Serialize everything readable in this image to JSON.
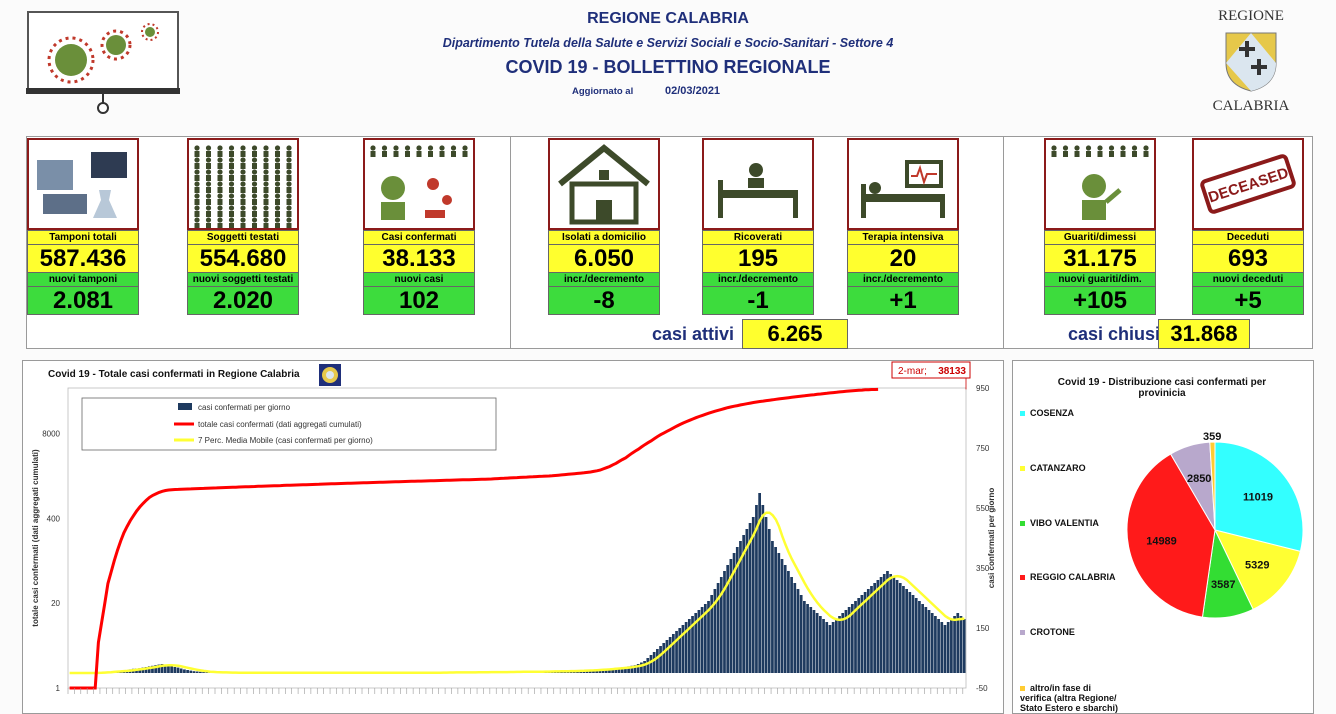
{
  "header": {
    "region": "REGIONE CALABRIA",
    "department": "Dipartimento Tutela della Salute e Servizi Sociali e Socio-Sanitari - Settore 4",
    "bulletin": "COVID 19 - BOLLETTINO REGIONALE",
    "updated_label": "Aggiornato al",
    "updated_date": "02/03/2021",
    "logo_top": "REGIONE",
    "logo_bottom": "CALABRIA"
  },
  "cards": [
    {
      "label": "Tamponi totali",
      "value": "587.436",
      "sub_label": "nuovi tamponi",
      "sub_value": "2.081",
      "icon": "lab-equipment-icon"
    },
    {
      "label": "Soggetti testati",
      "value": "554.680",
      "sub_label": "nuovi soggetti testati",
      "sub_value": "2.020",
      "icon": "people-grid-icon"
    },
    {
      "label": "Casi confermati",
      "value": "38.133",
      "sub_label": "nuovi casi",
      "sub_value": "102",
      "icon": "virus-person-icon"
    },
    {
      "label": "Isolati a domicilio",
      "value": "6.050",
      "sub_label": "incr./decremento",
      "sub_value": "-8",
      "icon": "house-icon"
    },
    {
      "label": "Ricoverati",
      "value": "195",
      "sub_label": "incr./decremento",
      "sub_value": "-1",
      "icon": "hospital-bed-icon"
    },
    {
      "label": "Terapia intensiva",
      "value": "20",
      "sub_label": "incr./decremento",
      "sub_value": "+1",
      "icon": "intensive-care-icon"
    },
    {
      "label": "Guariti/dimessi",
      "value": "31.175",
      "sub_label": "nuovi guariti/dim.",
      "sub_value": "+105",
      "icon": "recovered-person-icon"
    },
    {
      "label": "Deceduti",
      "value": "693",
      "sub_label": "nuovi deceduti",
      "sub_value": "+5",
      "icon": "deceased-stamp-icon"
    }
  ],
  "deceased_stamp": "DECEASED",
  "summary": {
    "active_label": "casi attivi",
    "active_value": "6.265",
    "closed_label": "casi chiusi",
    "closed_value": "31.868"
  },
  "colors": {
    "yellow": "#ffff2e",
    "green": "#3ddc3d",
    "navy": "#1f2f7a",
    "bars": "#1e3a5f",
    "cumulative": "#ff0000",
    "moving_avg": "#ffff33"
  },
  "chart_data": [
    {
      "type": "bar",
      "title": "Covid 19 - Totale casi confermati in Regione Calabria",
      "ylabel_left": "totale casi confermati (dati aggregati cumulati)",
      "ylabel_right": "casi confermati  per giorno",
      "left_axis_ticks": [
        "1",
        "20",
        "400",
        "8000"
      ],
      "left_axis_scale": "log",
      "right_axis_ticks": [
        "-50",
        "150",
        "350",
        "550",
        "750",
        "950"
      ],
      "right_ylim": [
        -50,
        950
      ],
      "annotation": {
        "label": "2-mar;",
        "value": "38133"
      },
      "series": [
        {
          "name": "casi confermati per giorno",
          "kind": "bar",
          "values": [
            0,
            0,
            0,
            0,
            0,
            0,
            0,
            0,
            0,
            2,
            3,
            4,
            5,
            5,
            6,
            7,
            8,
            9,
            10,
            12,
            14,
            15,
            16,
            18,
            20,
            22,
            24,
            26,
            28,
            30,
            26,
            24,
            22,
            20,
            18,
            15,
            12,
            10,
            8,
            6,
            5,
            4,
            3,
            3,
            2,
            2,
            2,
            2,
            1,
            1,
            1,
            1,
            1,
            1,
            1,
            1,
            1,
            1,
            1,
            1,
            1,
            1,
            1,
            1,
            1,
            1,
            1,
            1,
            1,
            1,
            1,
            1,
            1,
            1,
            1,
            1,
            1,
            1,
            1,
            1,
            1,
            1,
            1,
            1,
            1,
            1,
            1,
            1,
            1,
            1,
            1,
            1,
            1,
            1,
            1,
            1,
            1,
            1,
            1,
            1,
            1,
            1,
            1,
            1,
            1,
            1,
            1,
            1,
            1,
            1,
            1,
            1,
            1,
            1,
            1,
            1,
            2,
            2,
            2,
            2,
            2,
            2,
            2,
            2,
            2,
            2,
            2,
            3,
            3,
            3,
            3,
            3,
            3,
            3,
            3,
            3,
            3,
            4,
            4,
            4,
            4,
            4,
            4,
            4,
            4,
            4,
            5,
            5,
            5,
            5,
            5,
            6,
            6,
            6,
            6,
            6,
            7,
            7,
            7,
            8,
            8,
            9,
            9,
            10,
            10,
            11,
            12,
            13,
            14,
            15,
            16,
            17,
            18,
            19,
            20,
            22,
            24,
            26,
            30,
            35,
            40,
            50,
            60,
            70,
            80,
            90,
            100,
            110,
            120,
            130,
            140,
            150,
            160,
            170,
            180,
            190,
            200,
            210,
            220,
            230,
            240,
            260,
            280,
            300,
            320,
            340,
            360,
            380,
            400,
            420,
            440,
            460,
            480,
            500,
            520,
            560,
            600,
            560,
            520,
            480,
            440,
            420,
            400,
            380,
            360,
            340,
            320,
            300,
            280,
            260,
            240,
            230,
            220,
            210,
            200,
            190,
            180,
            170,
            160,
            170,
            180,
            190,
            200,
            210,
            220,
            230,
            240,
            250,
            260,
            270,
            280,
            290,
            300,
            310,
            320,
            330,
            340,
            330,
            320,
            310,
            300,
            290,
            280,
            270,
            260,
            250,
            240,
            230,
            220,
            210,
            200,
            190,
            180,
            170,
            160,
            170,
            180,
            190,
            200,
            190,
            180
          ]
        },
        {
          "name": "totale casi confermati (dati aggregati cumulati)",
          "kind": "line",
          "values": [
            1,
            1,
            1,
            1,
            1,
            1,
            1,
            1,
            1,
            5,
            10,
            20,
            40,
            60,
            90,
            130,
            180,
            240,
            300,
            370,
            440,
            520,
            600,
            680,
            760,
            840,
            900,
            950,
            1000,
            1040,
            1070,
            1090,
            1100,
            1110,
            1115,
            1120,
            1125,
            1130,
            1135,
            1140,
            1145,
            1150,
            1155,
            1160,
            1165,
            1170,
            1175,
            1180,
            1185,
            1190,
            1195,
            1200,
            1205,
            1210,
            1215,
            1220,
            1225,
            1230,
            1235,
            1240,
            1245,
            1250,
            1255,
            1260,
            1265,
            1270,
            1275,
            1280,
            1285,
            1290,
            1295,
            1300,
            1305,
            1310,
            1315,
            1320,
            1325,
            1330,
            1335,
            1340,
            1345,
            1350,
            1355,
            1360,
            1365,
            1370,
            1375,
            1380,
            1385,
            1390,
            1395,
            1400,
            1405,
            1410,
            1415,
            1420,
            1425,
            1430,
            1435,
            1440,
            1445,
            1450,
            1455,
            1460,
            1465,
            1470,
            1475,
            1480,
            1485,
            1490,
            1495,
            1500,
            1505,
            1510,
            1515,
            1520,
            1525,
            1530,
            1535,
            1540,
            1545,
            1550,
            1555,
            1560,
            1565,
            1570,
            1575,
            1580,
            1585,
            1590,
            1595,
            1600,
            1610,
            1620,
            1630,
            1640,
            1650,
            1660,
            1670,
            1680,
            1690,
            1700,
            1710,
            1720,
            1730,
            1740,
            1750,
            1760,
            1770,
            1780,
            1790,
            1800,
            1820,
            1840,
            1860,
            1880,
            1900,
            1920,
            1940,
            1960,
            1980,
            2000,
            2030,
            2060,
            2100,
            2150,
            2200,
            2300,
            2400,
            2500,
            2650,
            2800,
            3000,
            3200,
            3400,
            3700,
            4000,
            4300,
            4600,
            5000,
            5400,
            5800,
            6200,
            6700,
            7200,
            7700,
            8200,
            8700,
            9200,
            9800,
            10400,
            11000,
            11600,
            12200,
            12800,
            13400,
            14000,
            14600,
            15200,
            15800,
            16400,
            17000,
            17600,
            18200,
            18800,
            19400,
            20000,
            20500,
            21000,
            21500,
            22000,
            22500,
            23000,
            23500,
            24000,
            24400,
            24800,
            25200,
            25600,
            26000,
            26400,
            26800,
            27200,
            27600,
            28000,
            28400,
            28800,
            29200,
            29600,
            30000,
            30400,
            30800,
            31200,
            31600,
            32000,
            32400,
            32800,
            33200,
            33600,
            34000,
            34400,
            34800,
            35200,
            35600,
            36000,
            36300,
            36600,
            36900,
            37200,
            37500,
            37700,
            37900,
            38000,
            38133
          ]
        },
        {
          "name": "7 Perc. Media Mobile (casi confermati per giorno)",
          "kind": "line"
        }
      ]
    },
    {
      "type": "pie",
      "title": "Covid 19 - Distribuzione casi confermati per provinicia",
      "series": [
        {
          "name": "COSENZA",
          "value": 11019,
          "color": "#33ffff"
        },
        {
          "name": "CATANZARO",
          "value": 5329,
          "color": "#ffff33"
        },
        {
          "name": "VIBO VALENTIA",
          "value": 3587,
          "color": "#33dd33"
        },
        {
          "name": "REGGIO CALABRIA",
          "value": 14989,
          "color": "#ff1a1a"
        },
        {
          "name": "CROTONE",
          "value": 2850,
          "color": "#b8a8cc"
        },
        {
          "name": "altro/in fase di verifica (altra Regione/ Stato Estero e sbarchi)",
          "value": 359,
          "color": "#ffcc33"
        }
      ]
    }
  ]
}
